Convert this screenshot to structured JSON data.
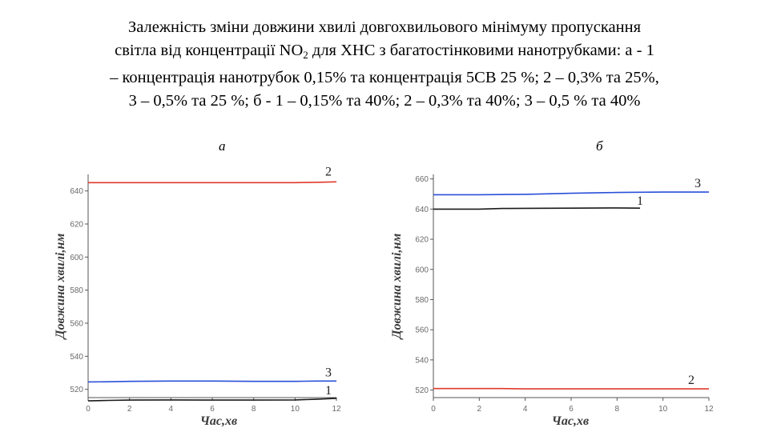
{
  "title": {
    "line1": "Залежність зміни довжини хвилі довгохвильового мінімуму пропускання",
    "line2_pre": "світла від концентрації NO",
    "line2_sub": "2",
    "line2_post": " для ХНС з багатостінковими нанотрубками: а - 1",
    "line3": "– концентрація нанотрубок 0,15% та концентрація 5СВ 25 %; 2 – 0,3% та 25%,",
    "line4": "3 – 0,5% та 25 %; б - 1 – 0,15% та 40%; 2 – 0,3%  та 40%; 3 – 0,5 % та 40%"
  },
  "panel_labels": {
    "a": "а",
    "b": "б"
  },
  "colors": {
    "red": "#e03a2a",
    "blue": "#2a4fd8",
    "black": "#1a1a1a",
    "axis": "#555555"
  },
  "chart_data": [
    {
      "type": "line",
      "panel": "а",
      "xlabel": "Час,хв",
      "ylabel": "Довжина хвилі,нм",
      "xlim": [
        0,
        12
      ],
      "ylim": [
        515,
        650
      ],
      "xticks": [
        0,
        2,
        4,
        6,
        8,
        10,
        12
      ],
      "yticks": [
        520,
        540,
        560,
        580,
        600,
        620,
        640
      ],
      "series": [
        {
          "name": "1",
          "color": "black",
          "x": [
            0,
            1,
            2,
            4,
            6,
            8,
            10,
            11,
            12
          ],
          "y": [
            513,
            513.3,
            513.5,
            513.6,
            513.5,
            513.5,
            513.6,
            514,
            514.5
          ]
        },
        {
          "name": "2",
          "color": "red",
          "x": [
            0,
            2,
            4,
            6,
            8,
            10,
            11,
            12
          ],
          "y": [
            645,
            645,
            645,
            645,
            645,
            645,
            645.2,
            645.5
          ]
        },
        {
          "name": "3",
          "color": "blue",
          "x": [
            0,
            1,
            2,
            4,
            6,
            8,
            10,
            11,
            12
          ],
          "y": [
            524.5,
            524.6,
            524.8,
            525,
            525,
            524.8,
            524.8,
            525,
            525
          ]
        }
      ]
    },
    {
      "type": "line",
      "panel": "б",
      "xlabel": "Час,хв",
      "ylabel": "Довжина хвилі,нм",
      "xlim": [
        0,
        12
      ],
      "ylim": [
        515,
        663
      ],
      "xticks": [
        0,
        2,
        4,
        6,
        8,
        10,
        12
      ],
      "yticks": [
        520,
        540,
        560,
        580,
        600,
        620,
        640,
        660
      ],
      "series": [
        {
          "name": "1",
          "color": "black",
          "x": [
            0,
            2,
            3,
            4,
            6,
            8,
            9
          ],
          "y": [
            640,
            640,
            640.4,
            640.5,
            640.6,
            640.8,
            640.6
          ]
        },
        {
          "name": "2",
          "color": "red",
          "x": [
            0,
            2,
            3,
            4,
            6,
            8,
            10,
            12
          ],
          "y": [
            521,
            521,
            521,
            520.8,
            520.8,
            520.8,
            520.8,
            520.8
          ]
        },
        {
          "name": "3",
          "color": "blue",
          "x": [
            0,
            2,
            4,
            6,
            8,
            10,
            12
          ],
          "y": [
            649.5,
            649.5,
            649.8,
            650.5,
            651,
            651.3,
            651.3
          ]
        }
      ]
    }
  ]
}
